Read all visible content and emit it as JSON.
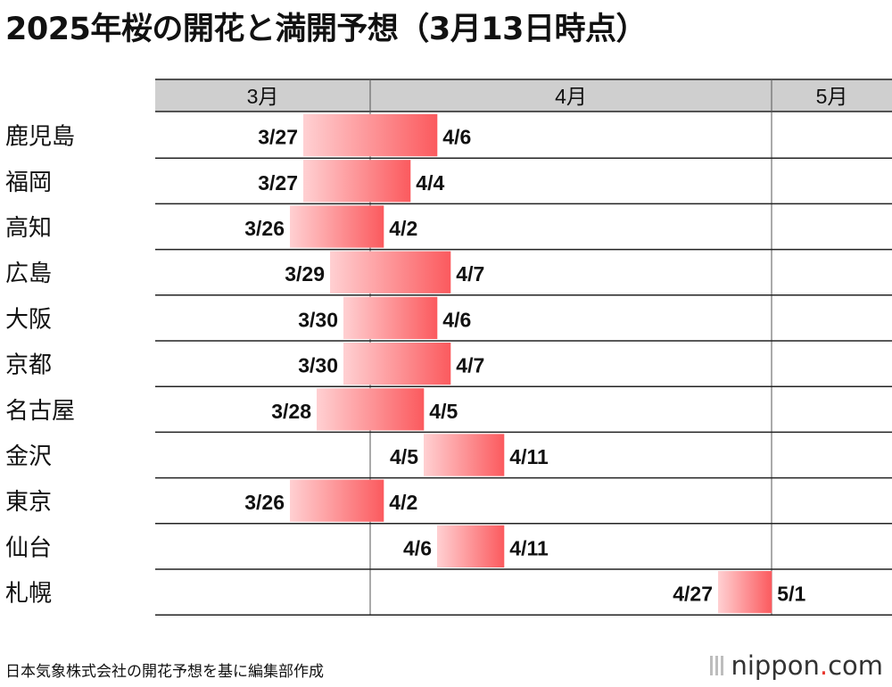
{
  "title": "2025年桜の開花と満開予想（3月13日時点）",
  "footer": "日本気象株式会社の開花予想を基に編集部作成",
  "brand": {
    "name": "nippon",
    "dot": ".",
    "tld": "com"
  },
  "colors": {
    "bar_start": "#ffd0d2",
    "bar_end": "#fb5a5e",
    "header_bg": "#cfcfcf",
    "brand_dot": "#e8382f"
  },
  "chart_data": {
    "type": "bar",
    "orientation": "horizontal-range",
    "months": [
      "3月",
      "4月",
      "5月"
    ],
    "rows": [
      {
        "city": "鹿児島",
        "bloom": "3/27",
        "full": "4/6"
      },
      {
        "city": "福岡",
        "bloom": "3/27",
        "full": "4/4"
      },
      {
        "city": "高知",
        "bloom": "3/26",
        "full": "4/2"
      },
      {
        "city": "広島",
        "bloom": "3/29",
        "full": "4/7"
      },
      {
        "city": "大阪",
        "bloom": "3/30",
        "full": "4/6"
      },
      {
        "city": "京都",
        "bloom": "3/30",
        "full": "4/7"
      },
      {
        "city": "名古屋",
        "bloom": "3/28",
        "full": "4/5"
      },
      {
        "city": "金沢",
        "bloom": "4/5",
        "full": "4/11"
      },
      {
        "city": "東京",
        "bloom": "3/26",
        "full": "4/2"
      },
      {
        "city": "仙台",
        "bloom": "4/6",
        "full": "4/11"
      },
      {
        "city": "札幌",
        "bloom": "4/27",
        "full": "5/1"
      }
    ]
  }
}
